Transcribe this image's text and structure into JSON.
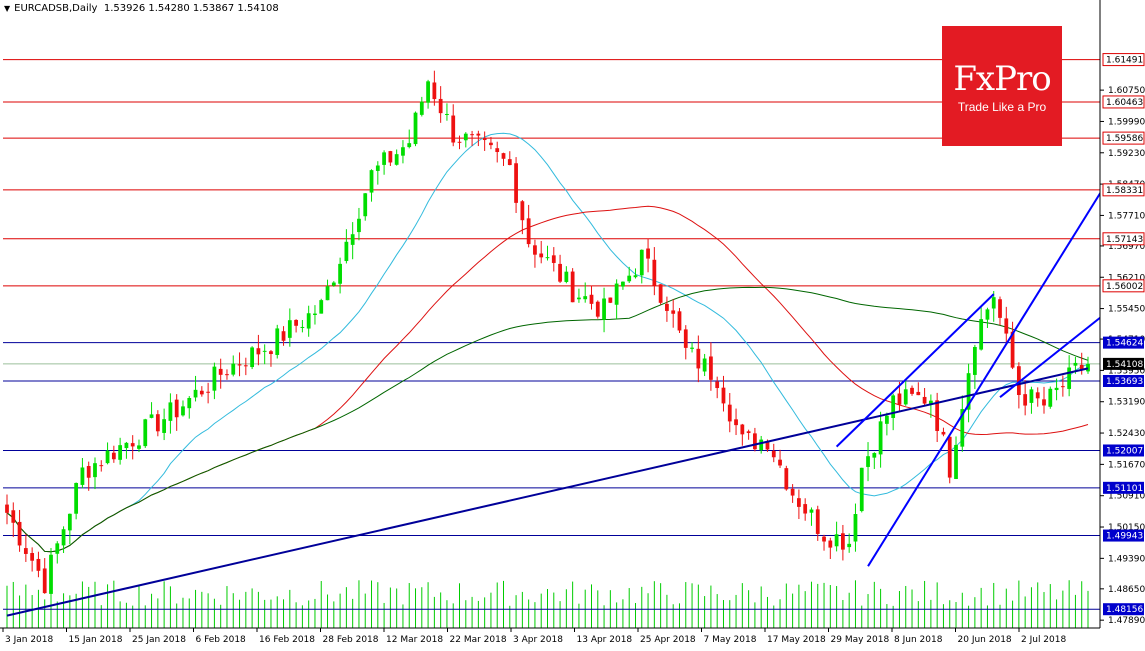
{
  "header": {
    "symbol": "EURCADSB,Daily",
    "ohlc": "1.53926 1.54280 1.53867 1.54108"
  },
  "logo": {
    "brand": "FxPro",
    "slogan": "Trade Like a Pro"
  },
  "colors": {
    "bull": "#00dd00",
    "bear": "#ee1111",
    "level_red": "#dd0000",
    "level_blue": "#000099",
    "channel": "#0000ff",
    "sma_fast": "#33bbdd",
    "sma_mid": "#dd1111",
    "sma_slow": "#006600",
    "volume": "#00cc00"
  },
  "chart_data": {
    "type": "candlestick",
    "symbol": "EURCADSB",
    "timeframe": "Daily",
    "last_ohlc": {
      "open": 1.53926,
      "high": 1.5428,
      "low": 1.53867,
      "close": 1.54108
    },
    "ylim": [
      1.477,
      1.625
    ],
    "y_ticks": [
      1.4789,
      1.4865,
      1.4939,
      1.5015,
      1.5091,
      1.5167,
      1.5243,
      1.5319,
      1.5395,
      1.5471,
      1.5545,
      1.5621,
      1.5697,
      1.5771,
      1.5847,
      1.5923,
      1.5999,
      1.6075
    ],
    "y_tick_labels": [
      "1.47890",
      "1.48650",
      "1.49390",
      "1.50150",
      "1.50910",
      "1.51670",
      "1.52430",
      "1.53190",
      "1.53950",
      "1.54710",
      "1.55450",
      "1.56210",
      "1.56970",
      "1.57710",
      "1.58470",
      "1.59230",
      "1.59990",
      "1.60750"
    ],
    "x_labels": [
      "3 Jan 2018",
      "15 Jan 2018",
      "25 Jan 2018",
      "6 Feb 2018",
      "16 Feb 2018",
      "28 Feb 2018",
      "12 Mar 2018",
      "22 Mar 2018",
      "3 Apr 2018",
      "13 Apr 2018",
      "25 Apr 2018",
      "7 May 2018",
      "17 May 2018",
      "29 May 2018",
      "8 Jun 2018",
      "20 Jun 2018",
      "2 Jul 2018"
    ],
    "price_label": {
      "value": 1.54108,
      "text": "1.54108"
    },
    "levels": [
      {
        "value": 1.61491,
        "label": "1.61491",
        "style": "red"
      },
      {
        "value": 1.60463,
        "label": "1.60463",
        "style": "red"
      },
      {
        "value": 1.59586,
        "label": "1.59586",
        "style": "red"
      },
      {
        "value": 1.58331,
        "label": "1.58331",
        "style": "red"
      },
      {
        "value": 1.57143,
        "label": "1.57143",
        "style": "red"
      },
      {
        "value": 1.56002,
        "label": "1.56002",
        "style": "red"
      },
      {
        "value": 1.54624,
        "label": "1.54624",
        "style": "blue"
      },
      {
        "value": 1.53693,
        "label": "1.53693",
        "style": "blue"
      },
      {
        "value": 1.52007,
        "label": "1.52007",
        "style": "blue"
      },
      {
        "value": 1.51101,
        "label": "1.51101",
        "style": "blue"
      },
      {
        "value": 1.49943,
        "label": "1.49943",
        "style": "blue"
      },
      {
        "value": 1.48156,
        "label": "1.48156",
        "style": "blue"
      }
    ],
    "anchors": [
      [
        0,
        1.505
      ],
      [
        6,
        1.488
      ],
      [
        12,
        1.515
      ],
      [
        20,
        1.523
      ],
      [
        27,
        1.53
      ],
      [
        35,
        1.54
      ],
      [
        42,
        1.546
      ],
      [
        50,
        1.555
      ],
      [
        58,
        1.587
      ],
      [
        64,
        1.595
      ],
      [
        67,
        1.61
      ],
      [
        71,
        1.597
      ],
      [
        77,
        1.592
      ],
      [
        80,
        1.589
      ],
      [
        83,
        1.571
      ],
      [
        90,
        1.559
      ],
      [
        95,
        1.554
      ],
      [
        101,
        1.567
      ],
      [
        105,
        1.556
      ],
      [
        108,
        1.544
      ],
      [
        113,
        1.538
      ],
      [
        117,
        1.522
      ],
      [
        121,
        1.523
      ],
      [
        125,
        1.51
      ],
      [
        130,
        1.5
      ],
      [
        134,
        1.498
      ],
      [
        136,
        1.516
      ],
      [
        141,
        1.532
      ],
      [
        147,
        1.533
      ],
      [
        150,
        1.516
      ],
      [
        154,
        1.548
      ],
      [
        157,
        1.558
      ],
      [
        161,
        1.534
      ],
      [
        165,
        1.531
      ],
      [
        170,
        1.539
      ],
      [
        172,
        1.541
      ]
    ],
    "bars": 173,
    "moving_averages": [
      {
        "period": 20,
        "color": "sma_fast"
      },
      {
        "period": 50,
        "color": "sma_mid"
      },
      {
        "period": 100,
        "color": "sma_slow"
      }
    ],
    "trendlines": [
      {
        "from": [
          0,
          1.48
        ],
        "to": [
          172,
          1.54
        ]
      },
      {
        "from": [
          137,
          1.492
        ],
        "to": [
          177,
          1.59
        ]
      },
      {
        "from": [
          132,
          1.521
        ],
        "to": [
          157,
          1.558
        ]
      },
      {
        "from": [
          158,
          1.533
        ],
        "to": [
          177,
          1.556
        ]
      }
    ],
    "grid": false,
    "legend": "none"
  }
}
